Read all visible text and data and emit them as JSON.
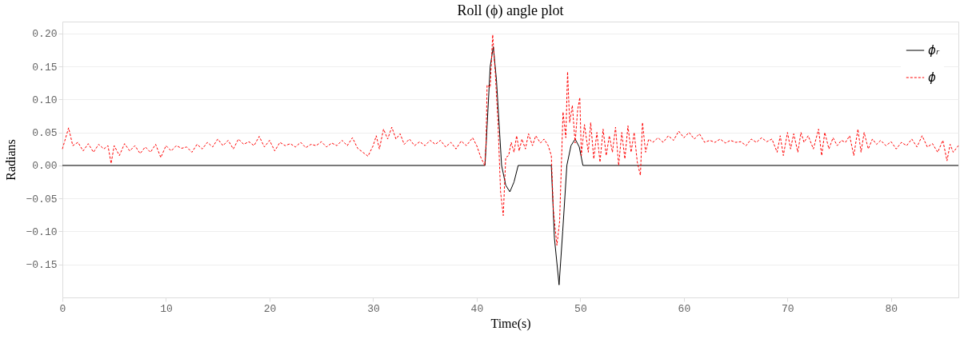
{
  "chart_data": {
    "type": "line",
    "title": "Roll (ϕ) angle plot",
    "xlabel": "Time(s)",
    "ylabel": "Radians",
    "xlim": [
      0,
      86.5
    ],
    "ylim": [
      -0.2,
      0.218
    ],
    "xticks": [
      0,
      10,
      20,
      30,
      40,
      50,
      60,
      70,
      80
    ],
    "yticks": [
      {
        "value": -0.15,
        "label": "−0.15"
      },
      {
        "value": -0.1,
        "label": "−0.10"
      },
      {
        "value": -0.05,
        "label": "−0.05"
      },
      {
        "value": 0,
        "label": "0.00"
      },
      {
        "value": 0.05,
        "label": "0.05"
      },
      {
        "value": 0.1,
        "label": "0.10"
      },
      {
        "value": 0.15,
        "label": "0.15"
      },
      {
        "value": 0.2,
        "label": "0.20"
      }
    ],
    "grid": "y",
    "legend": "top right",
    "marker": "none",
    "series": [
      {
        "name": "ϕᵣ",
        "color": "#000000",
        "line_style": "solid",
        "x": [
          0,
          40.8,
          41.0,
          41.3,
          41.6,
          41.9,
          42.4,
          42.8,
          43.2,
          43.6,
          44.0,
          47.2,
          47.5,
          47.95,
          48.3,
          48.7,
          49.1,
          49.5,
          49.9,
          50.25,
          86.5
        ],
        "values": [
          0,
          0,
          0.06,
          0.15,
          0.18,
          0.13,
          0,
          -0.03,
          -0.04,
          -0.025,
          0,
          0,
          -0.11,
          -0.181,
          -0.1,
          0,
          0.03,
          0.04,
          0.028,
          0,
          0
        ]
      },
      {
        "name": "ϕ",
        "color": "#ff0000",
        "line_style": "dashed",
        "x": [
          0,
          0.6,
          1.0,
          1.5,
          2.0,
          2.5,
          3.0,
          3.5,
          4.0,
          4.4,
          4.7,
          5.0,
          5.5,
          6.0,
          6.5,
          7.0,
          7.5,
          8.0,
          8.5,
          9.0,
          9.5,
          10.0,
          10.5,
          11.0,
          11.5,
          12.0,
          12.5,
          13.0,
          13.5,
          14.0,
          14.5,
          15.0,
          15.5,
          16.0,
          16.5,
          17.0,
          17.5,
          18.0,
          18.5,
          19.0,
          19.5,
          20.0,
          20.5,
          21.0,
          21.5,
          22.0,
          22.5,
          23.0,
          23.5,
          24.0,
          24.5,
          25.0,
          25.5,
          26.0,
          26.5,
          27.0,
          27.5,
          28.0,
          28.5,
          29.0,
          29.5,
          30.0,
          30.3,
          30.6,
          31.0,
          31.4,
          31.8,
          32.2,
          32.6,
          33.0,
          33.5,
          34.0,
          34.5,
          35.0,
          35.5,
          36.0,
          36.5,
          37.0,
          37.5,
          38.0,
          38.5,
          39.0,
          39.6,
          40.0,
          40.4,
          40.77,
          40.9,
          41.0,
          41.3,
          41.54,
          41.79,
          42.05,
          42.3,
          42.56,
          42.8,
          43.08,
          43.33,
          43.6,
          43.85,
          44.1,
          44.36,
          44.7,
          45.0,
          45.38,
          45.7,
          46.15,
          46.5,
          46.9,
          47.2,
          47.4,
          47.74,
          48.0,
          48.33,
          48.6,
          48.77,
          48.97,
          49.23,
          49.5,
          49.74,
          49.95,
          50.1,
          50.4,
          50.77,
          51.0,
          51.3,
          51.6,
          51.9,
          52.2,
          52.5,
          52.8,
          53.1,
          53.4,
          53.7,
          54.0,
          54.3,
          54.6,
          54.9,
          55.2,
          55.5,
          55.8,
          56.0,
          56.3,
          56.6,
          57.0,
          57.5,
          58.0,
          58.5,
          59.0,
          59.5,
          60.0,
          60.5,
          61.0,
          61.5,
          62.0,
          62.5,
          63.0,
          63.5,
          64.0,
          64.5,
          65.0,
          65.5,
          66.0,
          66.5,
          67.0,
          67.5,
          68.0,
          68.5,
          69.0,
          69.3,
          69.6,
          70.0,
          70.3,
          70.6,
          71.0,
          71.3,
          71.6,
          72.0,
          72.5,
          73.0,
          73.3,
          73.6,
          74.0,
          74.4,
          74.8,
          75.2,
          75.6,
          76.0,
          76.4,
          76.8,
          77.1,
          77.4,
          77.8,
          78.2,
          78.6,
          79.0,
          79.5,
          80.0,
          80.5,
          81.0,
          81.5,
          82.0,
          82.5,
          83.0,
          83.5,
          84.0,
          84.5,
          85.0,
          85.4,
          85.7,
          86.0,
          86.5
        ],
        "values": [
          0.025,
          0.057,
          0.03,
          0.035,
          0.022,
          0.033,
          0.02,
          0.032,
          0.025,
          0.03,
          0.003,
          0.03,
          0.015,
          0.033,
          0.022,
          0.03,
          0.018,
          0.028,
          0.02,
          0.032,
          0.012,
          0.03,
          0.022,
          0.03,
          0.026,
          0.028,
          0.02,
          0.032,
          0.025,
          0.035,
          0.028,
          0.04,
          0.03,
          0.038,
          0.025,
          0.04,
          0.032,
          0.036,
          0.03,
          0.044,
          0.028,
          0.038,
          0.022,
          0.035,
          0.03,
          0.033,
          0.028,
          0.035,
          0.027,
          0.032,
          0.03,
          0.036,
          0.028,
          0.034,
          0.03,
          0.038,
          0.03,
          0.042,
          0.026,
          0.02,
          0.014,
          0.03,
          0.045,
          0.025,
          0.055,
          0.04,
          0.058,
          0.04,
          0.048,
          0.032,
          0.04,
          0.03,
          0.036,
          0.03,
          0.038,
          0.032,
          0.038,
          0.028,
          0.035,
          0.025,
          0.037,
          0.03,
          0.042,
          0.03,
          0.012,
          0.0,
          0.034,
          0.122,
          0.118,
          0.198,
          0.14,
          0.065,
          -0.04,
          -0.076,
          0.012,
          0.015,
          0.035,
          0.02,
          0.045,
          0.022,
          0.04,
          0.025,
          0.048,
          0.03,
          0.045,
          0.034,
          0.04,
          0.03,
          0.015,
          -0.068,
          -0.121,
          -0.085,
          0.081,
          0.042,
          0.142,
          0.065,
          0.091,
          0.034,
          0.084,
          0.103,
          0.015,
          0.062,
          0.02,
          0.065,
          0.01,
          0.05,
          0.005,
          0.055,
          0.015,
          0.045,
          0.02,
          0.058,
          0.0,
          0.05,
          0.01,
          0.06,
          0.02,
          0.05,
          0.005,
          -0.015,
          0.065,
          0.02,
          0.04,
          0.035,
          0.042,
          0.035,
          0.045,
          0.038,
          0.052,
          0.042,
          0.05,
          0.04,
          0.048,
          0.035,
          0.038,
          0.035,
          0.04,
          0.034,
          0.038,
          0.035,
          0.036,
          0.03,
          0.04,
          0.035,
          0.042,
          0.036,
          0.04,
          0.02,
          0.045,
          0.015,
          0.05,
          0.025,
          0.048,
          0.02,
          0.05,
          0.035,
          0.045,
          0.025,
          0.055,
          0.015,
          0.05,
          0.025,
          0.042,
          0.03,
          0.038,
          0.035,
          0.045,
          0.015,
          0.055,
          0.02,
          0.05,
          0.025,
          0.04,
          0.032,
          0.038,
          0.03,
          0.036,
          0.025,
          0.035,
          0.03,
          0.04,
          0.028,
          0.045,
          0.028,
          0.033,
          0.02,
          0.038,
          0.007,
          0.032,
          0.02,
          0.03
        ]
      }
    ]
  }
}
